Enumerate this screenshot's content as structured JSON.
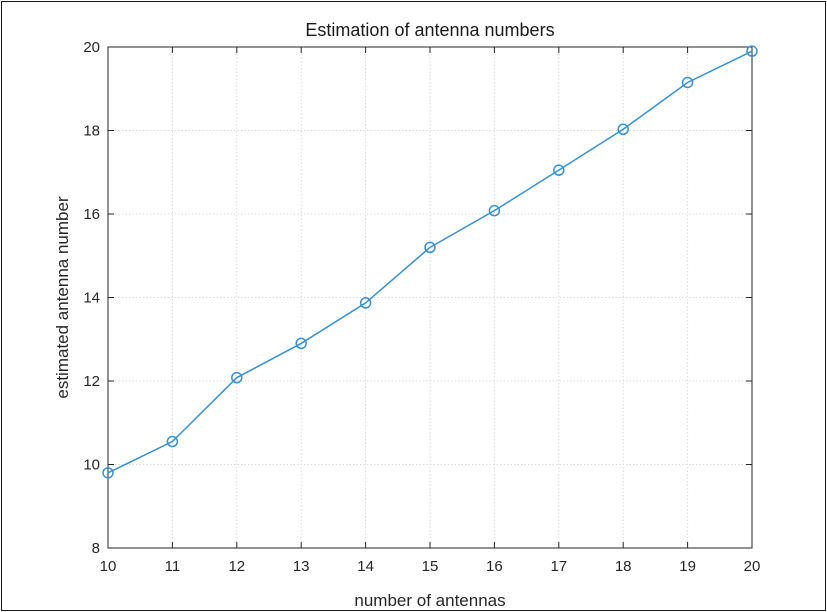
{
  "chart_data": {
    "type": "line",
    "title": "Estimation of antenna numbers",
    "xlabel": "number of antennas",
    "ylabel": "estimated antenna number",
    "xlim": [
      10,
      20
    ],
    "ylim": [
      8,
      20
    ],
    "xticks": [
      10,
      11,
      12,
      13,
      14,
      15,
      16,
      17,
      18,
      19,
      20
    ],
    "yticks": [
      8,
      10,
      12,
      14,
      16,
      18,
      20
    ],
    "grid": true,
    "marker": "circle",
    "series": [
      {
        "color": "#3a8fd0",
        "x": [
          10,
          11,
          12,
          13,
          14,
          15,
          16,
          17,
          18,
          19,
          20
        ],
        "y": [
          9.8,
          10.55,
          12.08,
          12.9,
          13.87,
          15.2,
          16.08,
          17.05,
          18.03,
          19.15,
          19.9
        ]
      }
    ]
  }
}
